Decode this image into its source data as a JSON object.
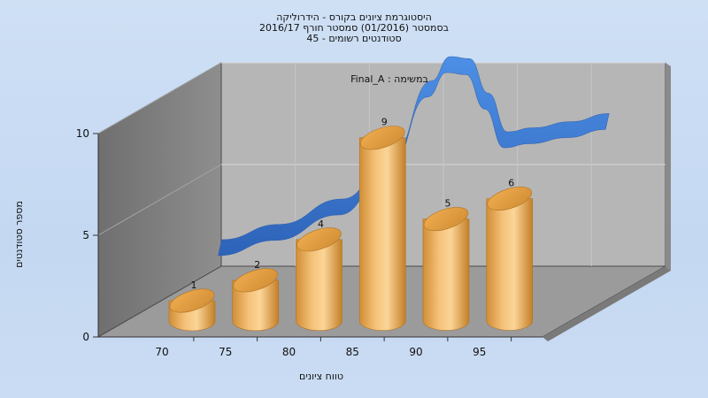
{
  "chart_data": {
    "type": "bar",
    "title_lines": [
      "היסטוגרמת ציונים בקורס - הידרוליקה",
      "בסמסטר  (01/2016)  סמסטר חורף 2016/17",
      "45 - סטודנטים רשומים"
    ],
    "legend_text": "Final_A : במשימה",
    "xlabel": "טווח ציונים",
    "ylabel": "מספר סטודנטים",
    "x_ticks": [
      "70",
      "75",
      "80",
      "85",
      "90",
      "95"
    ],
    "y_ticks": [
      "0",
      "5",
      "10"
    ],
    "ylim": [
      0,
      10
    ],
    "categories": [
      "70",
      "75",
      "80",
      "85",
      "90",
      "95"
    ],
    "values": [
      1,
      2,
      4,
      9,
      5,
      6
    ],
    "distribution_curve": {
      "x": [
        71.5,
        76,
        81,
        85,
        88,
        89.5,
        91,
        92.5,
        94,
        96,
        99,
        102
      ],
      "y": [
        1.0,
        1.75,
        3.0,
        5.2,
        8.8,
        10.0,
        9.9,
        8.2,
        6.3,
        6.5,
        6.8,
        7.2
      ]
    },
    "colors": {
      "bar": "#f2b45c",
      "bar_dark": "#c9872f",
      "curve": "#3f80d8",
      "wall": "#b7b7b7",
      "side_wall": "#7f7f7f",
      "floor": "#9c9c9c"
    },
    "grid": true
  }
}
